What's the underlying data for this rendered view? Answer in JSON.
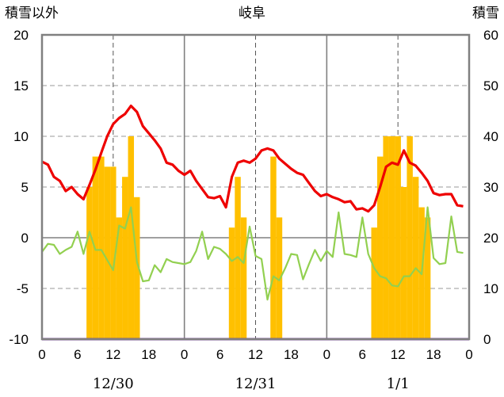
{
  "chart_data": {
    "type": "bar+line",
    "title": "岐阜",
    "left_axis_label": "積雪以外",
    "right_axis_label": "積雪",
    "left_ylim": [
      -10,
      20
    ],
    "right_ylim": [
      0,
      60
    ],
    "left_ticks": [
      "20",
      "15",
      "10",
      "5",
      "0",
      "-5",
      "-10"
    ],
    "right_ticks": [
      "60",
      "50",
      "40",
      "30",
      "20",
      "10",
      "0"
    ],
    "hour_ticks": [
      "0",
      "6",
      "12",
      "18",
      "0",
      "6",
      "12",
      "18",
      "0",
      "6",
      "12",
      "18",
      "0"
    ],
    "dates": [
      "12/30",
      "12/31",
      "1/1"
    ],
    "hours_per_day": 24,
    "x_range_hours": [
      0,
      72
    ],
    "colors": {
      "red_line": "#ee0000",
      "green_line": "#92d050",
      "bars": "#ffc000",
      "purple_line": "#7030a0",
      "frame": "#808080"
    },
    "series": [
      {
        "type": "line",
        "axis": "left",
        "color": "#ee0000",
        "x": [
          0,
          1,
          2,
          3,
          4,
          5,
          6,
          7,
          8,
          9,
          10,
          11,
          12,
          13,
          14,
          15,
          16,
          17,
          18,
          19,
          20,
          21,
          22,
          23,
          24,
          25,
          26,
          27,
          28,
          29,
          30,
          31,
          32,
          33,
          34,
          35,
          36,
          37,
          38,
          39,
          40,
          41,
          42,
          43,
          44,
          45,
          46,
          47,
          48,
          49,
          50,
          51,
          52,
          53,
          54,
          55,
          56,
          57,
          58,
          59,
          60,
          61,
          62,
          63,
          64,
          65,
          66,
          67,
          68,
          69,
          70,
          71
        ],
        "values": [
          7.5,
          7.2,
          6.0,
          5.6,
          4.6,
          5.0,
          4.3,
          3.8,
          5.2,
          6.7,
          8.4,
          10.0,
          11.2,
          11.8,
          12.2,
          13.0,
          12.4,
          11.0,
          10.3,
          9.6,
          8.8,
          7.4,
          7.2,
          6.6,
          6.2,
          6.6,
          5.6,
          4.8,
          4.0,
          3.9,
          4.1,
          3.0,
          6.0,
          7.4,
          7.6,
          7.4,
          7.8,
          8.6,
          8.8,
          8.6,
          7.8,
          7.3,
          6.8,
          6.4,
          6.2,
          5.4,
          4.6,
          4.1,
          4.3,
          4.0,
          3.8,
          3.5,
          3.6,
          2.8,
          2.9,
          2.6,
          3.2,
          5.0,
          7.0,
          7.4,
          7.2,
          8.6,
          7.4,
          7.1,
          6.4,
          5.6,
          4.4,
          4.2,
          4.3,
          4.3,
          3.2,
          3.1
        ]
      },
      {
        "type": "line",
        "axis": "left",
        "color": "#92d050",
        "x": [
          0,
          1,
          2,
          3,
          4,
          5,
          6,
          7,
          8,
          9,
          10,
          11,
          12,
          13,
          14,
          15,
          16,
          17,
          18,
          19,
          20,
          21,
          22,
          23,
          24,
          25,
          26,
          27,
          28,
          29,
          30,
          31,
          32,
          33,
          34,
          35,
          36,
          37,
          38,
          39,
          40,
          41,
          42,
          43,
          44,
          45,
          46,
          47,
          48,
          49,
          50,
          51,
          52,
          53,
          54,
          55,
          56,
          57,
          58,
          59,
          60,
          61,
          62,
          63,
          64,
          65,
          66,
          67,
          68,
          69,
          70,
          71
        ],
        "values": [
          -1.4,
          -0.6,
          -0.7,
          -1.6,
          -1.2,
          -0.9,
          0.6,
          -1.6,
          0.6,
          -1.2,
          -1.2,
          -2.2,
          -3.2,
          1.2,
          0.9,
          3.0,
          -2.4,
          -4.3,
          -4.2,
          -2.7,
          -3.4,
          -2.1,
          -2.4,
          -2.5,
          -2.6,
          -2.4,
          -1.3,
          0.6,
          -2.1,
          -0.9,
          -1.1,
          -1.6,
          -2.3,
          -1.9,
          -2.5,
          1.1,
          -1.8,
          -2.1,
          -6.1,
          -3.8,
          -4.2,
          -3.0,
          -1.6,
          -1.7,
          -4.1,
          -2.6,
          -1.2,
          -2.3,
          -1.3,
          -1.9,
          2.5,
          -1.6,
          -1.7,
          -1.9,
          2.0,
          -1.6,
          -3.0,
          -3.8,
          -4.0,
          -4.7,
          -4.8,
          -3.8,
          -3.8,
          -3.0,
          -3.6,
          3.0,
          -2.0,
          -2.6,
          -2.5,
          2.1,
          -1.4,
          -1.5
        ]
      },
      {
        "type": "line",
        "axis": "right",
        "color": "#7030a0",
        "x": [
          0,
          72
        ],
        "values": [
          0,
          0
        ]
      },
      {
        "type": "bar",
        "axis": "right",
        "color": "#ffc000",
        "x": [
          8,
          9,
          10,
          11,
          12,
          13,
          14,
          15,
          16,
          32,
          33,
          34,
          35,
          36,
          37,
          38,
          39,
          40,
          41,
          56,
          57,
          58,
          59,
          60,
          61,
          62,
          63,
          64,
          65
        ],
        "values": [
          30,
          36,
          36,
          34,
          34,
          24,
          32,
          40,
          28,
          22,
          32,
          24,
          0,
          0,
          0,
          0,
          36,
          24,
          0,
          22,
          36,
          40,
          40,
          40,
          30,
          40,
          32,
          26,
          24
        ]
      }
    ]
  }
}
